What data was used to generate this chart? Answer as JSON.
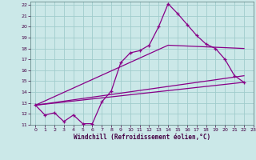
{
  "xlabel": "Windchill (Refroidissement éolien,°C)",
  "background_color": "#cbe8e8",
  "grid_color": "#a0cccc",
  "line_color": "#880088",
  "xlim": [
    -0.5,
    23
  ],
  "ylim": [
    11,
    22.3
  ],
  "xticks": [
    0,
    1,
    2,
    3,
    4,
    5,
    6,
    7,
    8,
    9,
    10,
    11,
    12,
    13,
    14,
    15,
    16,
    17,
    18,
    19,
    20,
    21,
    22,
    23
  ],
  "yticks": [
    11,
    12,
    13,
    14,
    15,
    16,
    17,
    18,
    19,
    20,
    21,
    22
  ],
  "line1_x": [
    0,
    1,
    2,
    3,
    4,
    5,
    6,
    7,
    8,
    9,
    10,
    11,
    12,
    13,
    14,
    15,
    16,
    17,
    18,
    19,
    20,
    21,
    22
  ],
  "line1_y": [
    12.8,
    11.9,
    12.1,
    11.3,
    11.9,
    11.1,
    11.1,
    13.1,
    14.1,
    16.7,
    17.6,
    17.8,
    18.3,
    20.0,
    22.1,
    21.2,
    20.2,
    19.2,
    18.4,
    18.0,
    17.0,
    15.5,
    14.9
  ],
  "line2_x": [
    0,
    22
  ],
  "line2_y": [
    12.8,
    14.9
  ],
  "line3_x": [
    0,
    22
  ],
  "line3_y": [
    12.8,
    15.5
  ],
  "line4_x": [
    0,
    14,
    22
  ],
  "line4_y": [
    12.8,
    18.3,
    18.0
  ]
}
